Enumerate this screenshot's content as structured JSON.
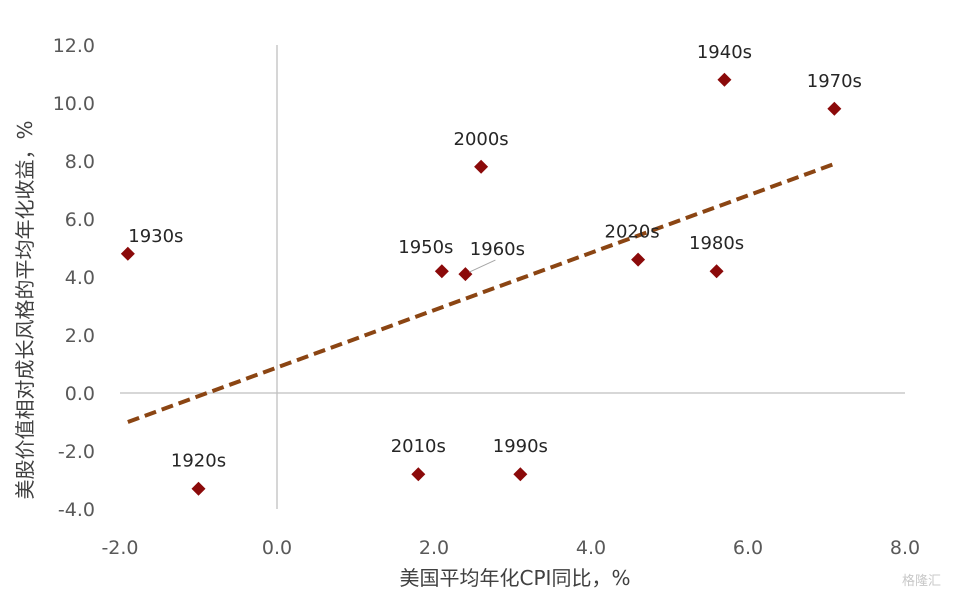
{
  "chart_data": {
    "type": "scatter",
    "xlabel": "美国平均年化CPI同比，%",
    "ylabel": "美股价值相对成长风格的平均年化收益，%",
    "xlim": [
      -2.0,
      8.0
    ],
    "ylim": [
      -4.0,
      12.0
    ],
    "x_ticks": [
      "-2.0",
      "0.0",
      "2.0",
      "4.0",
      "6.0",
      "8.0"
    ],
    "y_ticks": [
      "-4.0",
      "-2.0",
      "0.0",
      "2.0",
      "4.0",
      "6.0",
      "8.0",
      "10.0",
      "12.0"
    ],
    "grid": false,
    "points": [
      {
        "label": "1920s",
        "x": -1.0,
        "y": -3.3
      },
      {
        "label": "1930s",
        "x": -1.9,
        "y": 4.8
      },
      {
        "label": "1940s",
        "x": 5.7,
        "y": 10.8
      },
      {
        "label": "1950s",
        "x": 2.1,
        "y": 4.2
      },
      {
        "label": "1960s",
        "x": 2.4,
        "y": 4.1
      },
      {
        "label": "1970s",
        "x": 7.1,
        "y": 9.8
      },
      {
        "label": "1980s",
        "x": 5.6,
        "y": 4.2
      },
      {
        "label": "1990s",
        "x": 3.1,
        "y": -2.8
      },
      {
        "label": "2000s",
        "x": 2.6,
        "y": 7.8
      },
      {
        "label": "2010s",
        "x": 1.8,
        "y": -2.8
      },
      {
        "label": "2020s",
        "x": 4.6,
        "y": 4.6
      }
    ],
    "trendline": {
      "x": [
        -1.9,
        7.1
      ],
      "y": [
        -1.0,
        7.9
      ]
    },
    "colors": {
      "points": "#8B0A0A",
      "trendline": "#8B4513",
      "axis": "#BFBFBF"
    }
  },
  "watermark": "格隆汇"
}
